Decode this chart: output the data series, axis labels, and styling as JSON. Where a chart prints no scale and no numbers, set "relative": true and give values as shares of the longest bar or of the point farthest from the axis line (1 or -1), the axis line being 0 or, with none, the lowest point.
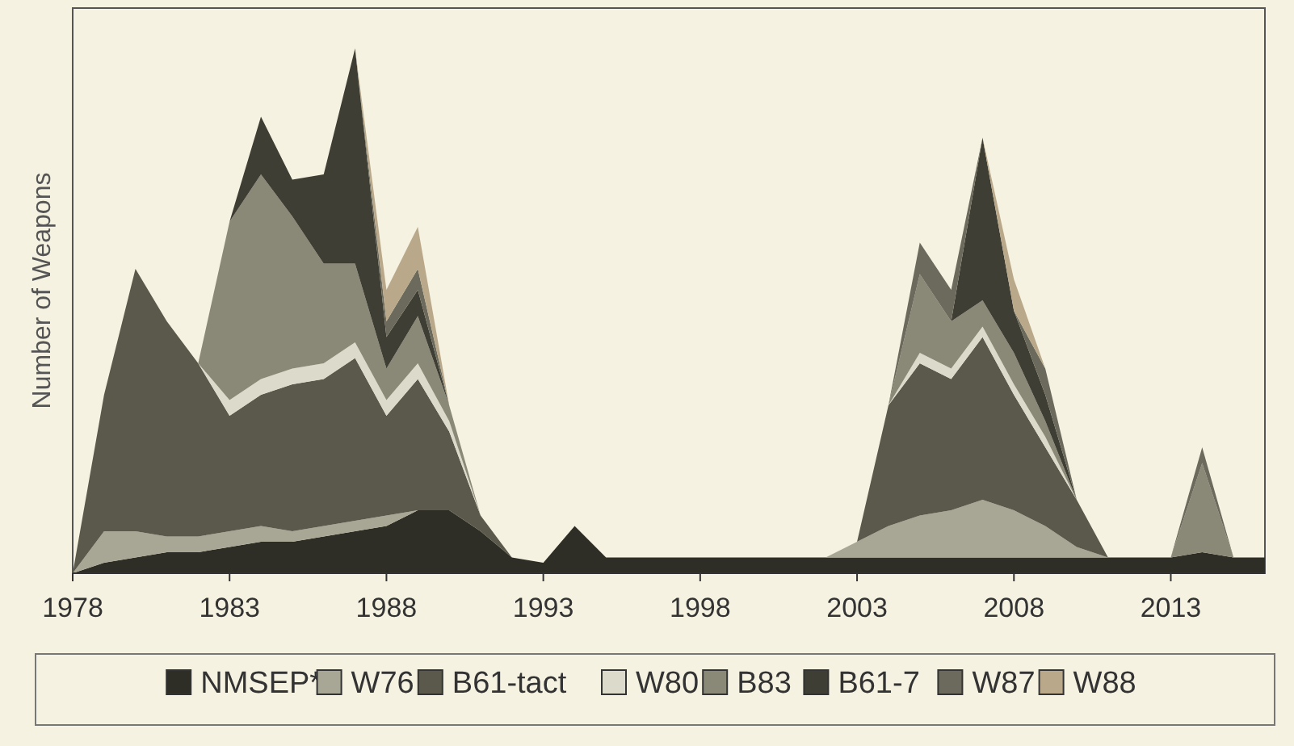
{
  "chart_data": {
    "type": "area",
    "stacked": true,
    "relative": true,
    "ylabel": "Number of Weapons",
    "legend": "bottom",
    "x": [
      1978,
      1979,
      1980,
      1981,
      1982,
      1983,
      1984,
      1985,
      1986,
      1987,
      1988,
      1989,
      1990,
      1991,
      1992,
      1993,
      1994,
      1995,
      1996,
      1997,
      1998,
      1999,
      2000,
      2001,
      2002,
      2003,
      2004,
      2005,
      2006,
      2007,
      2008,
      2009,
      2010,
      2011,
      2012,
      2013,
      2014,
      2015,
      2016
    ],
    "xlim": [
      1978,
      2016
    ],
    "xticks": [
      1978,
      1983,
      1988,
      1993,
      1998,
      2003,
      2008,
      2013
    ],
    "series": [
      {
        "name": "NMSEP*",
        "color": "#2e2e26",
        "values": [
          0,
          0.02,
          0.03,
          0.04,
          0.04,
          0.05,
          0.06,
          0.06,
          0.07,
          0.08,
          0.09,
          0.12,
          0.12,
          0.08,
          0.03,
          0.02,
          0.09,
          0.03,
          0.03,
          0.03,
          0.03,
          0.03,
          0.03,
          0.03,
          0.03,
          0.03,
          0.03,
          0.03,
          0.03,
          0.03,
          0.03,
          0.03,
          0.03,
          0.03,
          0.03,
          0.03,
          0.04,
          0.03,
          0.03
        ]
      },
      {
        "name": "W76",
        "color": "#a8a694",
        "values": [
          0,
          0.06,
          0.05,
          0.03,
          0.03,
          0.03,
          0.03,
          0.02,
          0.02,
          0.02,
          0.02,
          0,
          null,
          null,
          null,
          null,
          null,
          null,
          null,
          null,
          null,
          null,
          null,
          null,
          0,
          0.03,
          0.06,
          0.08,
          0.09,
          0.11,
          0.09,
          0.06,
          0.02,
          0,
          null,
          null,
          null,
          null,
          null
        ]
      },
      {
        "name": "B61-tact",
        "color": "#5a594c",
        "values": [
          0,
          0.26,
          0.5,
          0.41,
          0.33,
          0.22,
          0.25,
          0.28,
          0.28,
          0.31,
          0.19,
          0.25,
          0.15,
          0.03,
          0,
          null,
          null,
          null,
          null,
          null,
          null,
          null,
          null,
          null,
          null,
          0,
          0.23,
          0.29,
          0.25,
          0.31,
          0.22,
          0.15,
          0.09,
          0,
          null,
          null,
          null,
          null,
          null
        ]
      },
      {
        "name": "W80",
        "color": "#dcdacb",
        "values": [
          null,
          null,
          null,
          null,
          0,
          0.03,
          0.03,
          0.03,
          0.03,
          0.03,
          0.03,
          0.03,
          0.02,
          0,
          null,
          null,
          null,
          null,
          null,
          null,
          null,
          null,
          null,
          null,
          null,
          null,
          0,
          0.02,
          0.02,
          0.02,
          0.02,
          0.02,
          0,
          null,
          null,
          null,
          null,
          null,
          null
        ]
      },
      {
        "name": "B83",
        "color": "#8a8877",
        "values": [
          null,
          null,
          null,
          null,
          0,
          0.34,
          0.39,
          0.29,
          0.19,
          0.15,
          0.06,
          0.09,
          0.03,
          0,
          null,
          null,
          null,
          null,
          null,
          null,
          null,
          null,
          null,
          null,
          null,
          null,
          0,
          0.15,
          0.09,
          0.05,
          0.06,
          0.03,
          0,
          null,
          null,
          0,
          0.17,
          0,
          null
        ]
      },
      {
        "name": "B61-7",
        "color": "#3f3e34",
        "values": [
          null,
          null,
          null,
          null,
          null,
          0,
          0.11,
          0.07,
          0.17,
          0.41,
          0.06,
          0.05,
          0,
          null,
          null,
          null,
          null,
          null,
          null,
          null,
          null,
          null,
          null,
          null,
          null,
          null,
          null,
          null,
          0,
          0.31,
          0.08,
          0.05,
          0,
          null,
          null,
          null,
          null,
          null,
          null
        ]
      },
      {
        "name": "W87",
        "color": "#6b6a5c",
        "values": [
          null,
          null,
          null,
          null,
          null,
          null,
          null,
          null,
          null,
          0,
          0.03,
          0.04,
          0,
          null,
          null,
          null,
          null,
          null,
          null,
          null,
          null,
          null,
          null,
          null,
          null,
          null,
          0,
          0.06,
          0.06,
          0,
          0,
          0.05,
          0,
          null,
          null,
          0,
          0.03,
          0,
          null
        ]
      },
      {
        "name": "W88",
        "color": "#b9a98a",
        "values": [
          null,
          null,
          null,
          null,
          null,
          null,
          null,
          null,
          null,
          0,
          0.06,
          0.08,
          0,
          0,
          0,
          0,
          0,
          0,
          0,
          0,
          0,
          0,
          0,
          0,
          0,
          0,
          0,
          0,
          0,
          0,
          0.06,
          0,
          null,
          null,
          null,
          null,
          null,
          null,
          null
        ]
      }
    ]
  }
}
